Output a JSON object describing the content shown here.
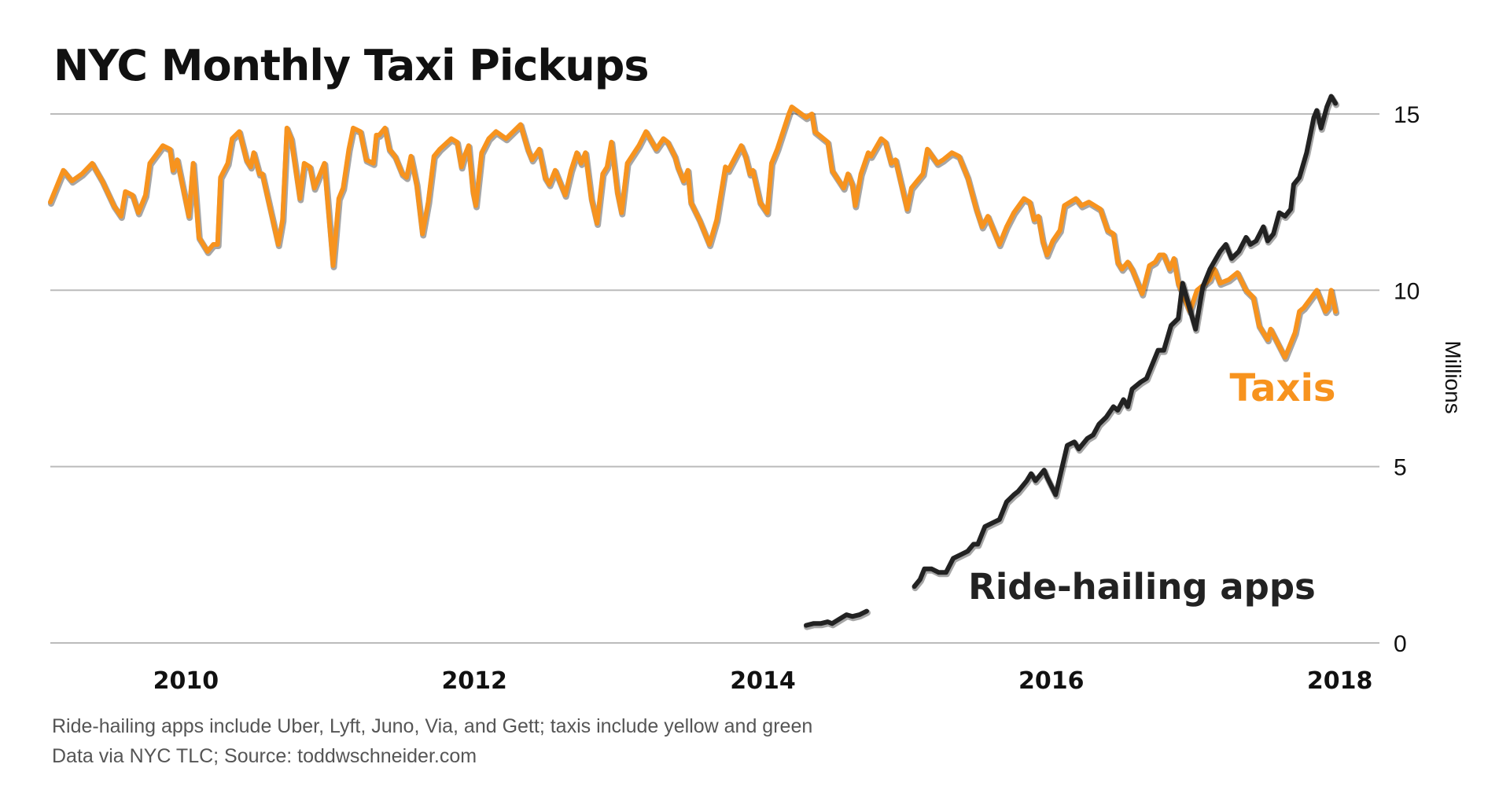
{
  "chart_data": {
    "type": "line",
    "title": "NYC Monthly Taxi Pickups",
    "ylabel": "Millions",
    "xlabel": "",
    "ylim": [
      0,
      15.6
    ],
    "xlim": [
      2009.0,
      2018.3
    ],
    "yticks": [
      0,
      5,
      10,
      15
    ],
    "xticks": [
      2010,
      2012,
      2014,
      2016,
      2018
    ],
    "grid": "horizontal",
    "y_axis_side": "right",
    "colors": {
      "taxis": "#F7931E",
      "ride_hailing": "#222222",
      "grid": "#bbbbbb"
    },
    "series": [
      {
        "name": "Taxis",
        "points": [
          [
            2009.06,
            12.5
          ],
          [
            2009.15,
            13.4
          ],
          [
            2009.21,
            13.1
          ],
          [
            2009.28,
            13.3
          ],
          [
            2009.35,
            13.6
          ],
          [
            2009.42,
            13.1
          ],
          [
            2009.5,
            12.4
          ],
          [
            2009.55,
            12.1
          ],
          [
            2009.58,
            12.8
          ],
          [
            2009.63,
            12.7
          ],
          [
            2009.67,
            12.2
          ],
          [
            2009.72,
            12.7
          ],
          [
            2009.75,
            13.6
          ],
          [
            2009.84,
            14.1
          ],
          [
            2009.89,
            14.0
          ],
          [
            2009.91,
            13.4
          ],
          [
            2009.94,
            13.7
          ],
          [
            2010.02,
            12.1
          ],
          [
            2010.05,
            13.6
          ],
          [
            2010.09,
            11.5
          ],
          [
            2010.15,
            11.1
          ],
          [
            2010.19,
            11.3
          ],
          [
            2010.22,
            11.3
          ],
          [
            2010.24,
            13.2
          ],
          [
            2010.29,
            13.6
          ],
          [
            2010.32,
            14.3
          ],
          [
            2010.37,
            14.5
          ],
          [
            2010.42,
            13.7
          ],
          [
            2010.45,
            13.5
          ],
          [
            2010.47,
            13.9
          ],
          [
            2010.51,
            13.3
          ],
          [
            2010.53,
            13.3
          ],
          [
            2010.64,
            11.3
          ],
          [
            2010.67,
            12.0
          ],
          [
            2010.7,
            14.6
          ],
          [
            2010.73,
            14.3
          ],
          [
            2010.79,
            12.6
          ],
          [
            2010.82,
            13.6
          ],
          [
            2010.86,
            13.5
          ],
          [
            2010.89,
            12.9
          ],
          [
            2010.96,
            13.6
          ],
          [
            2011.02,
            10.7
          ],
          [
            2011.06,
            12.6
          ],
          [
            2011.09,
            12.9
          ],
          [
            2011.13,
            14.0
          ],
          [
            2011.16,
            14.6
          ],
          [
            2011.21,
            14.5
          ],
          [
            2011.25,
            13.7
          ],
          [
            2011.3,
            13.6
          ],
          [
            2011.32,
            14.4
          ],
          [
            2011.34,
            14.4
          ],
          [
            2011.38,
            14.6
          ],
          [
            2011.41,
            14.0
          ],
          [
            2011.45,
            13.8
          ],
          [
            2011.5,
            13.3
          ],
          [
            2011.53,
            13.2
          ],
          [
            2011.56,
            13.8
          ],
          [
            2011.6,
            13.0
          ],
          [
            2011.64,
            11.6
          ],
          [
            2011.68,
            12.5
          ],
          [
            2011.72,
            13.8
          ],
          [
            2011.76,
            14.0
          ],
          [
            2011.84,
            14.3
          ],
          [
            2011.88,
            14.2
          ],
          [
            2011.91,
            13.5
          ],
          [
            2011.93,
            13.8
          ],
          [
            2011.96,
            14.1
          ],
          [
            2011.99,
            12.8
          ],
          [
            2012.01,
            12.4
          ],
          [
            2012.05,
            13.9
          ],
          [
            2012.1,
            14.3
          ],
          [
            2012.15,
            14.5
          ],
          [
            2012.22,
            14.3
          ],
          [
            2012.27,
            14.5
          ],
          [
            2012.32,
            14.7
          ],
          [
            2012.37,
            14.0
          ],
          [
            2012.4,
            13.7
          ],
          [
            2012.45,
            14.0
          ],
          [
            2012.49,
            13.2
          ],
          [
            2012.52,
            13.0
          ],
          [
            2012.56,
            13.4
          ],
          [
            2012.63,
            12.7
          ],
          [
            2012.67,
            13.4
          ],
          [
            2012.71,
            13.9
          ],
          [
            2012.74,
            13.6
          ],
          [
            2012.77,
            13.9
          ],
          [
            2012.81,
            12.6
          ],
          [
            2012.85,
            11.9
          ],
          [
            2012.89,
            13.3
          ],
          [
            2012.92,
            13.5
          ],
          [
            2012.95,
            14.2
          ],
          [
            2012.99,
            12.8
          ],
          [
            2013.02,
            12.2
          ],
          [
            2013.06,
            13.6
          ],
          [
            2013.14,
            14.1
          ],
          [
            2013.19,
            14.5
          ],
          [
            2013.26,
            14.0
          ],
          [
            2013.31,
            14.3
          ],
          [
            2013.34,
            14.2
          ],
          [
            2013.39,
            13.8
          ],
          [
            2013.41,
            13.5
          ],
          [
            2013.45,
            13.1
          ],
          [
            2013.48,
            13.4
          ],
          [
            2013.5,
            12.5
          ],
          [
            2013.56,
            12.0
          ],
          [
            2013.63,
            11.3
          ],
          [
            2013.68,
            12.0
          ],
          [
            2013.74,
            13.5
          ],
          [
            2013.76,
            13.4
          ],
          [
            2013.85,
            14.1
          ],
          [
            2013.88,
            13.8
          ],
          [
            2013.91,
            13.3
          ],
          [
            2013.93,
            13.4
          ],
          [
            2013.98,
            12.5
          ],
          [
            2014.03,
            12.2
          ],
          [
            2014.06,
            13.6
          ],
          [
            2014.1,
            14.0
          ],
          [
            2014.18,
            15.0
          ],
          [
            2014.2,
            15.2
          ],
          [
            2014.3,
            14.9
          ],
          [
            2014.34,
            15.0
          ],
          [
            2014.36,
            14.5
          ],
          [
            2014.45,
            14.2
          ],
          [
            2014.48,
            13.4
          ],
          [
            2014.56,
            12.9
          ],
          [
            2014.59,
            13.3
          ],
          [
            2014.62,
            13.0
          ],
          [
            2014.64,
            12.4
          ],
          [
            2014.68,
            13.3
          ],
          [
            2014.73,
            13.9
          ],
          [
            2014.75,
            13.8
          ],
          [
            2014.82,
            14.3
          ],
          [
            2014.85,
            14.2
          ],
          [
            2014.89,
            13.6
          ],
          [
            2014.92,
            13.7
          ],
          [
            2015.0,
            12.3
          ],
          [
            2015.03,
            12.9
          ],
          [
            2015.11,
            13.3
          ],
          [
            2015.14,
            14.0
          ],
          [
            2015.21,
            13.6
          ],
          [
            2015.25,
            13.7
          ],
          [
            2015.31,
            13.9
          ],
          [
            2015.36,
            13.8
          ],
          [
            2015.42,
            13.2
          ],
          [
            2015.48,
            12.3
          ],
          [
            2015.52,
            11.8
          ],
          [
            2015.56,
            12.1
          ],
          [
            2015.64,
            11.3
          ],
          [
            2015.69,
            11.8
          ],
          [
            2015.74,
            12.2
          ],
          [
            2015.81,
            12.6
          ],
          [
            2015.85,
            12.5
          ],
          [
            2015.88,
            12.0
          ],
          [
            2015.91,
            12.1
          ],
          [
            2015.94,
            11.4
          ],
          [
            2015.97,
            11.0
          ],
          [
            2016.01,
            11.4
          ],
          [
            2016.06,
            11.7
          ],
          [
            2016.09,
            12.4
          ],
          [
            2016.17,
            12.6
          ],
          [
            2016.21,
            12.4
          ],
          [
            2016.26,
            12.5
          ],
          [
            2016.34,
            12.3
          ],
          [
            2016.39,
            11.7
          ],
          [
            2016.43,
            11.6
          ],
          [
            2016.46,
            10.8
          ],
          [
            2016.49,
            10.6
          ],
          [
            2016.53,
            10.8
          ],
          [
            2016.56,
            10.6
          ],
          [
            2016.63,
            9.9
          ],
          [
            2016.68,
            10.7
          ],
          [
            2016.72,
            10.8
          ],
          [
            2016.75,
            11.0
          ],
          [
            2016.78,
            11.0
          ],
          [
            2016.82,
            10.6
          ],
          [
            2016.85,
            10.9
          ],
          [
            2016.88,
            10.2
          ],
          [
            2016.96,
            9.4
          ],
          [
            2017.01,
            10.0
          ],
          [
            2017.1,
            10.3
          ],
          [
            2017.13,
            10.6
          ],
          [
            2017.17,
            10.2
          ],
          [
            2017.23,
            10.3
          ],
          [
            2017.29,
            10.5
          ],
          [
            2017.35,
            10.0
          ],
          [
            2017.4,
            9.8
          ],
          [
            2017.44,
            9.0
          ],
          [
            2017.5,
            8.6
          ],
          [
            2017.52,
            8.9
          ],
          [
            2017.62,
            8.1
          ],
          [
            2017.69,
            8.8
          ],
          [
            2017.72,
            9.4
          ],
          [
            2017.75,
            9.5
          ],
          [
            2017.84,
            10.0
          ],
          [
            2017.9,
            9.4
          ],
          [
            2017.92,
            9.5
          ],
          [
            2017.94,
            10.0
          ],
          [
            2017.97,
            9.4
          ]
        ]
      },
      {
        "name": "Ride-hailing apps",
        "points": [
          [
            2014.3,
            0.5
          ],
          [
            2014.35,
            0.55
          ],
          [
            2014.4,
            0.55
          ],
          [
            2014.45,
            0.6
          ],
          [
            2014.48,
            0.55
          ],
          [
            2014.54,
            0.7
          ],
          [
            2014.58,
            0.8
          ],
          [
            2014.62,
            0.75
          ],
          [
            2014.67,
            0.8
          ],
          [
            2014.72,
            0.9
          ],
          null,
          [
            2015.05,
            1.6
          ],
          [
            2015.09,
            1.8
          ],
          [
            2015.12,
            2.1
          ],
          [
            2015.17,
            2.1
          ],
          [
            2015.22,
            2.0
          ],
          [
            2015.27,
            2.0
          ],
          [
            2015.32,
            2.4
          ],
          [
            2015.37,
            2.5
          ],
          [
            2015.42,
            2.6
          ],
          [
            2015.46,
            2.8
          ],
          [
            2015.49,
            2.8
          ],
          [
            2015.54,
            3.3
          ],
          [
            2015.59,
            3.4
          ],
          [
            2015.64,
            3.5
          ],
          [
            2015.69,
            4.0
          ],
          [
            2015.74,
            4.2
          ],
          [
            2015.77,
            4.3
          ],
          [
            2015.83,
            4.6
          ],
          [
            2015.86,
            4.8
          ],
          [
            2015.89,
            4.6
          ],
          [
            2015.95,
            4.9
          ],
          [
            2015.97,
            4.7
          ],
          [
            2016.03,
            4.2
          ],
          [
            2016.07,
            4.9
          ],
          [
            2016.11,
            5.6
          ],
          [
            2016.16,
            5.7
          ],
          [
            2016.19,
            5.5
          ],
          [
            2016.25,
            5.8
          ],
          [
            2016.29,
            5.9
          ],
          [
            2016.33,
            6.2
          ],
          [
            2016.38,
            6.4
          ],
          [
            2016.43,
            6.7
          ],
          [
            2016.46,
            6.6
          ],
          [
            2016.5,
            6.9
          ],
          [
            2016.53,
            6.7
          ],
          [
            2016.56,
            7.2
          ],
          [
            2016.62,
            7.4
          ],
          [
            2016.66,
            7.5
          ],
          [
            2016.71,
            8.0
          ],
          [
            2016.74,
            8.3
          ],
          [
            2016.78,
            8.3
          ],
          [
            2016.83,
            9.0
          ],
          [
            2016.88,
            9.2
          ],
          [
            2016.91,
            10.2
          ],
          [
            2017.0,
            8.9
          ],
          [
            2017.05,
            10.1
          ],
          [
            2017.1,
            10.6
          ],
          [
            2017.17,
            11.1
          ],
          [
            2017.21,
            11.3
          ],
          [
            2017.25,
            10.9
          ],
          [
            2017.3,
            11.1
          ],
          [
            2017.35,
            11.5
          ],
          [
            2017.38,
            11.3
          ],
          [
            2017.42,
            11.4
          ],
          [
            2017.47,
            11.8
          ],
          [
            2017.5,
            11.4
          ],
          [
            2017.54,
            11.6
          ],
          [
            2017.58,
            12.2
          ],
          [
            2017.62,
            12.1
          ],
          [
            2017.66,
            12.3
          ],
          [
            2017.68,
            13.0
          ],
          [
            2017.72,
            13.2
          ],
          [
            2017.77,
            13.9
          ],
          [
            2017.82,
            14.9
          ],
          [
            2017.84,
            15.1
          ],
          [
            2017.87,
            14.6
          ],
          [
            2017.91,
            15.2
          ],
          [
            2017.94,
            15.5
          ],
          [
            2017.97,
            15.3
          ]
        ]
      }
    ],
    "annotations": {
      "taxis_label": "Taxis",
      "ride_hailing_label": "Ride-hailing apps"
    },
    "notes": [
      "Ride-hailing apps include Uber, Lyft, Juno, Via, and Gett; taxis include yellow and green",
      "Data via NYC TLC; Source: toddwschneider.com"
    ]
  }
}
